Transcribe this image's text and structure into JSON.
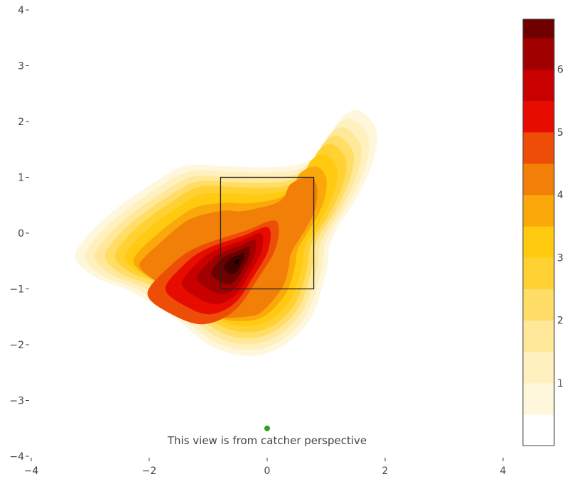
{
  "chart_data": {
    "type": "contour",
    "title": "",
    "xlabel": "",
    "ylabel": "",
    "xlim": [
      -4,
      4
    ],
    "ylim": [
      -4,
      4
    ],
    "x_ticks": [
      -4,
      -2,
      0,
      2,
      4
    ],
    "y_ticks": [
      -4,
      -3,
      -2,
      -1,
      0,
      1,
      2,
      3,
      4
    ],
    "x_tick_labels": [
      "−4",
      "−2",
      "0",
      "2",
      "4"
    ],
    "y_tick_labels": [
      "−4",
      "−3",
      "−2",
      "−1",
      "0",
      "1",
      "2",
      "3",
      "4"
    ],
    "grid": false,
    "colorscale": {
      "min": 0,
      "max": 6.8,
      "step": 0.5,
      "tick_values": [
        1,
        2,
        3,
        4,
        5,
        6
      ],
      "tick_labels": [
        "1",
        "2",
        "3",
        "4",
        "5",
        "6"
      ],
      "colors": [
        "#ffffff",
        "#fff7dc",
        "#fff0bf",
        "#ffe89a",
        "#ffdd66",
        "#ffd133",
        "#ffca10",
        "#faa80a",
        "#f27f07",
        "#ee4d07",
        "#e60d00",
        "#c80000",
        "#a00000",
        "#700000",
        "#400000",
        "#000000"
      ]
    },
    "strike_zone": {
      "x": [
        -0.79,
        0.79
      ],
      "y": [
        -1.0,
        1.0
      ]
    },
    "marker": {
      "x": 0,
      "y": -3.5,
      "color": "#2ca02c"
    },
    "density_peak": {
      "x": -0.5,
      "y": -0.5,
      "value": 6.8
    },
    "annotation": "This view is from catcher perspective"
  }
}
